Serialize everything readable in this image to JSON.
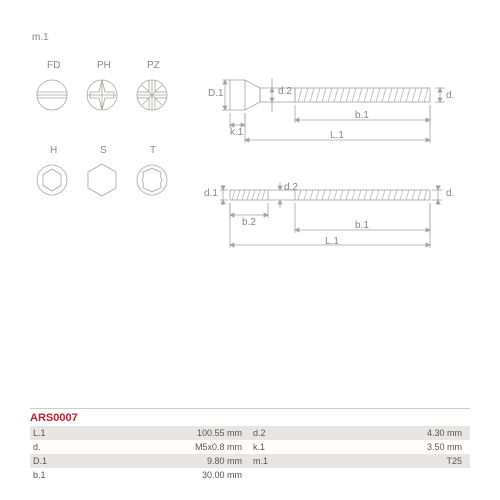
{
  "title_label": "m.1",
  "drive_icons": {
    "row1": [
      {
        "code": "FD",
        "name": "slotted"
      },
      {
        "code": "PH",
        "name": "phillips"
      },
      {
        "code": "PZ",
        "name": "pozidriv"
      }
    ],
    "row2": [
      {
        "code": "H",
        "name": "hex-socket"
      },
      {
        "code": "S",
        "name": "hex-head"
      },
      {
        "code": "T",
        "name": "torx"
      }
    ]
  },
  "dims": {
    "D1": "D.1",
    "d2": "d.2",
    "d": "d.",
    "b1": "b.1",
    "k1": "k.1",
    "L1": "L.1",
    "d1": "d.1",
    "b2": "b.2"
  },
  "part_number": "ARS0007",
  "specs_left": [
    {
      "k": "L.1",
      "v": "100.55 mm"
    },
    {
      "k": "d.",
      "v": "M5x0.8 mm"
    },
    {
      "k": "D.1",
      "v": "9.80 mm"
    },
    {
      "k": "b.1",
      "v": "30.00 mm"
    }
  ],
  "specs_right": [
    {
      "k": "d.2",
      "v": "4.30 mm"
    },
    {
      "k": "k.1",
      "v": "3.50 mm"
    },
    {
      "k": "m.1",
      "v": "T25"
    },
    {
      "k": "",
      "v": ""
    }
  ],
  "style": {
    "stroke": "#a8a4a0",
    "stroke_width": 0.8,
    "dim_color": "#888",
    "bg": "#fff",
    "icon_radius": 15,
    "font_size": 10
  }
}
